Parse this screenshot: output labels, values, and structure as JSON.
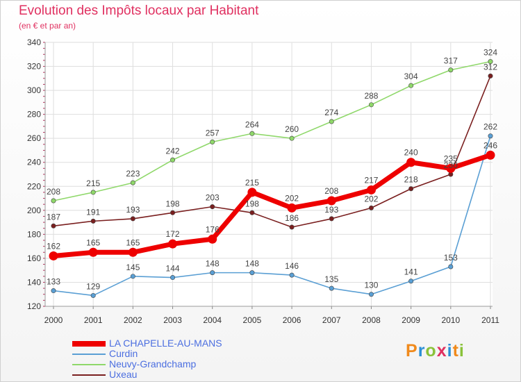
{
  "title": "Evolution des Impôts locaux par Habitant",
  "subtitle": "(en € et par an)",
  "logo": {
    "text": "Proxiti",
    "colors": [
      "#f08a1c",
      "#2a8fd6",
      "#8ac23a",
      "#e03060",
      "#2a8fd6",
      "#f08a1c",
      "#8ac23a"
    ]
  },
  "chart_data": {
    "type": "line",
    "x": [
      "2000",
      "2001",
      "2002",
      "2003",
      "2004",
      "2005",
      "2006",
      "2007",
      "2008",
      "2009",
      "2010",
      "2011"
    ],
    "ylim": [
      120,
      340
    ],
    "yticks": [
      120,
      140,
      160,
      180,
      200,
      220,
      240,
      260,
      280,
      300,
      320,
      340
    ],
    "grid": true,
    "legend_position": "bottom-left",
    "series": [
      {
        "name": "LA CHAPELLE-AU-MANS",
        "color": "#ee0000",
        "highlight": true,
        "values": [
          162,
          165,
          165,
          172,
          176,
          215,
          202,
          208,
          217,
          240,
          235,
          246
        ]
      },
      {
        "name": "Curdin",
        "color": "#5a9fd4",
        "values": [
          133,
          129,
          145,
          144,
          148,
          148,
          146,
          135,
          130,
          141,
          153,
          262
        ]
      },
      {
        "name": "Neuvy-Grandchamp",
        "color": "#8fd86a",
        "values": [
          208,
          215,
          223,
          242,
          257,
          264,
          260,
          274,
          288,
          304,
          317,
          324
        ]
      },
      {
        "name": "Uxeau",
        "color": "#7a1f1f",
        "values": [
          187,
          191,
          193,
          198,
          203,
          198,
          186,
          193,
          202,
          218,
          230,
          312
        ]
      }
    ]
  }
}
